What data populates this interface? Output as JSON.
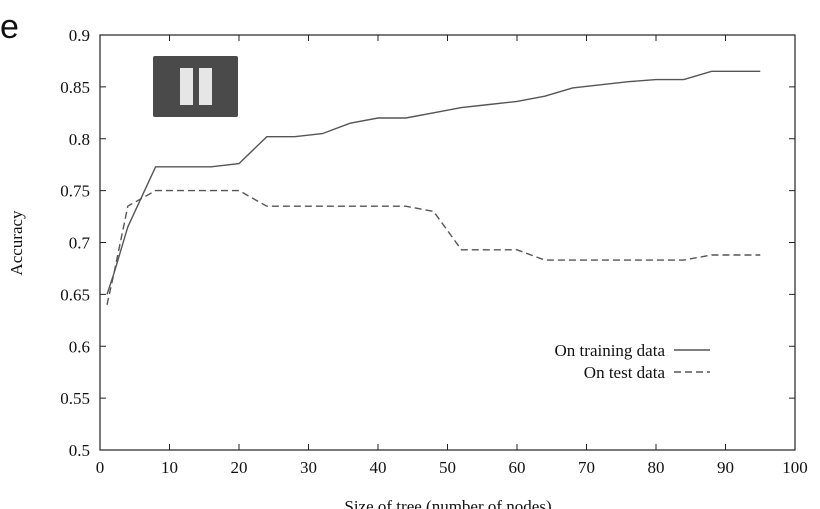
{
  "page": {
    "crop_text": "e"
  },
  "controls": {
    "pause_icon": "pause-icon"
  },
  "chart_data": {
    "type": "line",
    "title": "",
    "xlabel": "Size of tree (number of nodes)",
    "ylabel": "Accuracy",
    "xlim": [
      0,
      100
    ],
    "ylim": [
      0.5,
      0.9
    ],
    "xticks": [
      0,
      10,
      20,
      30,
      40,
      50,
      60,
      70,
      80,
      90,
      100
    ],
    "yticks": [
      0.5,
      0.55,
      0.6,
      0.65,
      0.7,
      0.75,
      0.8,
      0.85,
      0.9
    ],
    "ytick_labels": [
      "0.5",
      "0.55",
      "0.6",
      "0.65",
      "0.7",
      "0.75",
      "0.8",
      "0.85",
      "0.9"
    ],
    "grid": false,
    "legend_position": "lower-right",
    "series": [
      {
        "name": "On training data",
        "style": "solid",
        "color": "#555555",
        "x": [
          1,
          2,
          4,
          8,
          12,
          16,
          20,
          24,
          28,
          32,
          36,
          40,
          44,
          48,
          52,
          56,
          60,
          64,
          68,
          72,
          76,
          80,
          84,
          88,
          92,
          95
        ],
        "y": [
          0.65,
          0.67,
          0.715,
          0.773,
          0.773,
          0.773,
          0.776,
          0.802,
          0.802,
          0.805,
          0.815,
          0.82,
          0.82,
          0.825,
          0.83,
          0.833,
          0.836,
          0.841,
          0.849,
          0.852,
          0.855,
          0.857,
          0.857,
          0.865,
          0.865,
          0.865
        ]
      },
      {
        "name": "On test data",
        "style": "dashed",
        "color": "#555555",
        "x": [
          1,
          2,
          4,
          8,
          12,
          16,
          20,
          24,
          28,
          32,
          36,
          40,
          44,
          48,
          52,
          56,
          60,
          64,
          68,
          72,
          76,
          80,
          84,
          88,
          92,
          95
        ],
        "y": [
          0.64,
          0.67,
          0.735,
          0.75,
          0.75,
          0.75,
          0.75,
          0.735,
          0.735,
          0.735,
          0.735,
          0.735,
          0.735,
          0.73,
          0.693,
          0.693,
          0.693,
          0.683,
          0.683,
          0.683,
          0.683,
          0.683,
          0.683,
          0.688,
          0.688,
          0.688
        ]
      }
    ]
  }
}
